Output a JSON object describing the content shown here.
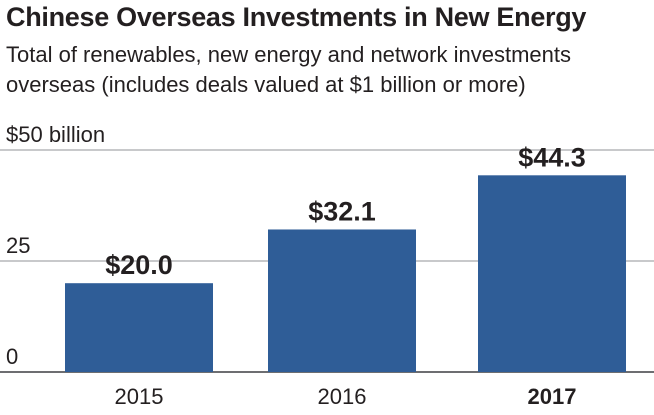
{
  "chart_data": {
    "type": "bar",
    "title": "Chinese Overseas Investments in New Energy",
    "subtitle": "Total of renewables, new energy and network investments overseas (includes deals valued at $1 billion or more)",
    "categories": [
      "2015",
      "2016",
      "2017"
    ],
    "values": [
      20.0,
      32.1,
      44.3
    ],
    "value_labels": [
      "$20.0",
      "$32.1",
      "$44.3"
    ],
    "highlight_category": "2017",
    "ylim": [
      0,
      50
    ],
    "yticks": [
      {
        "value": 50,
        "label": "$50 billion"
      },
      {
        "value": 25,
        "label": "25"
      },
      {
        "value": 0,
        "label": "0"
      }
    ],
    "xlabel": "",
    "ylabel": "",
    "bar_color": "#2f5d97",
    "grid_color": "#a7a9ac"
  }
}
